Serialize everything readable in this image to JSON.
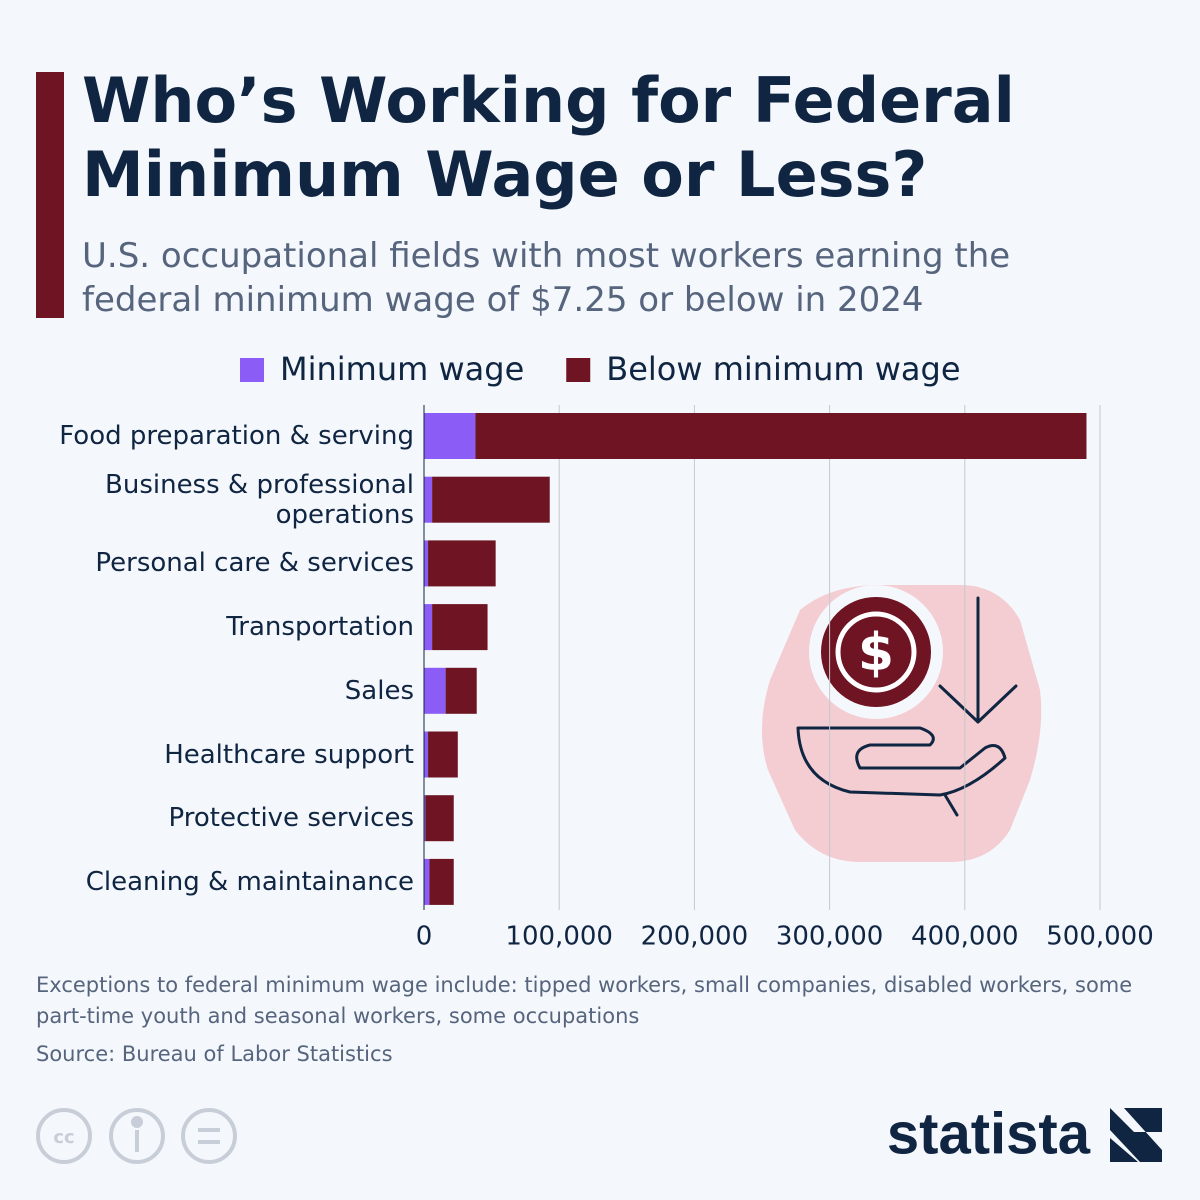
{
  "chart_data": {
    "type": "bar",
    "orientation": "horizontal",
    "stacked": true,
    "title": "Who’s Working for Federal Minimum Wage or Less?",
    "subtitle": "U.S. occupational fields with most workers earning the federal minimum wage of $7.25 or below in 2024",
    "categories": [
      "Food preparation & serving",
      "Business & professional operations",
      "Personal care & services",
      "Transportation",
      "Sales",
      "Healthcare support",
      "Protective services",
      "Cleaning & maintainance"
    ],
    "series": [
      {
        "name": "Minimum wage",
        "color": "#8b5cf6",
        "values": [
          38000,
          6000,
          3000,
          6000,
          16000,
          3000,
          1000,
          4000
        ]
      },
      {
        "name": "Below minimum wage",
        "color": "#6e1423",
        "values": [
          452000,
          87000,
          50000,
          41000,
          23000,
          22000,
          21000,
          18000
        ]
      }
    ],
    "xlim": [
      0,
      500000
    ],
    "xticks": [
      0,
      {
        "value": 100000,
        "label": "100,000"
      },
      {
        "value": 200000,
        "label": "200,000"
      },
      {
        "value": 300000,
        "label": "300,000"
      },
      {
        "value": 400000,
        "label": "400,000"
      },
      {
        "value": 500000,
        "label": "500,000"
      }
    ],
    "grid": true,
    "note": "Exceptions to federal minimum wage include: tipped workers, small companies, disabled workers, some part-time youth and seasonal workers, some occupations",
    "source": "Source: Bureau of Labor Statistics",
    "brand": "statista"
  }
}
